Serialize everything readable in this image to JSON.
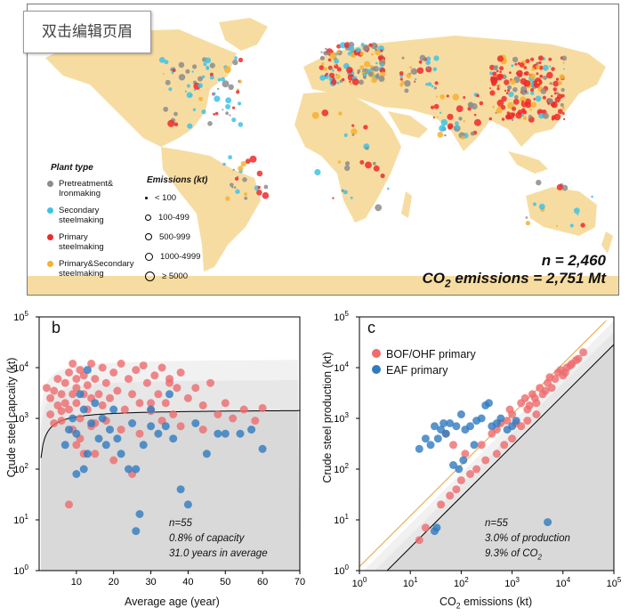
{
  "toolbar": {
    "edit_button_label": "双击编辑页眉"
  },
  "map": {
    "legend_plant_title": "Plant type",
    "plant_types": [
      {
        "label": "Pretreatment&\nIronmaking",
        "color": "#8c8c8c"
      },
      {
        "label": "Secondary\nsteelmaking",
        "color": "#3ec3e6"
      },
      {
        "label": "Primary\nsteelmaking",
        "color": "#ee2a2a"
      },
      {
        "label": "Primary&Secondary\nsteelmaking",
        "color": "#f6b133"
      }
    ],
    "legend_emissions_title": "Emissions (kt)",
    "emission_classes": [
      "< 100",
      "100-499",
      "500-999",
      "1000-4999",
      "≥ 5000"
    ],
    "n_label": "n = 2,460",
    "emissions_label_prefix": "CO",
    "emissions_label_sub": "2",
    "emissions_label_suffix": " emissions = 2,751 Mt",
    "colors": {
      "ocean": "#ffffff",
      "land": "#f7dca1"
    }
  },
  "chart_data": [
    {
      "panel": "b",
      "type": "scatter",
      "xlabel": "Average age (year)",
      "ylabel": "Crude steel capcaity (kt)",
      "xlim": [
        0,
        70
      ],
      "ylim": [
        1,
        100000
      ],
      "y_scale": "log",
      "x_ticks": [
        10,
        20,
        30,
        40,
        50,
        60,
        70
      ],
      "y_ticks": [
        "10^0",
        "10^1",
        "10^2",
        "10^3",
        "10^4",
        "10^5"
      ],
      "annotation": [
        "n=55",
        "0.8% of capacity",
        "31.0 years in average"
      ],
      "series": [
        {
          "color": "#ee6b6e",
          "points": [
            [
              2,
              4000
            ],
            [
              3,
              2500
            ],
            [
              4,
              3500
            ],
            [
              5,
              1800
            ],
            [
              5,
              6000
            ],
            [
              6,
              3000
            ],
            [
              6,
              900
            ],
            [
              7,
              5000
            ],
            [
              7,
              2000
            ],
            [
              8,
              8000
            ],
            [
              8,
              1500
            ],
            [
              9,
              3000
            ],
            [
              9,
              12000
            ],
            [
              10,
              2000
            ],
            [
              10,
              6000
            ],
            [
              10,
              4000
            ],
            [
              11,
              1000
            ],
            [
              11,
              9000
            ],
            [
              12,
              3000
            ],
            [
              12,
              7000
            ],
            [
              13,
              1500
            ],
            [
              13,
              4500
            ],
            [
              14,
              12000
            ],
            [
              14,
              2500
            ],
            [
              15,
              6000
            ],
            [
              15,
              800
            ],
            [
              16,
              3000
            ],
            [
              17,
              10000
            ],
            [
              17,
              1800
            ],
            [
              18,
              5000
            ],
            [
              19,
              2500
            ],
            [
              20,
              8000
            ],
            [
              21,
              3500
            ],
            [
              22,
              12000
            ],
            [
              23,
              1500
            ],
            [
              24,
              6000
            ],
            [
              25,
              3000
            ],
            [
              26,
              9000
            ],
            [
              27,
              2000
            ],
            [
              28,
              11000
            ],
            [
              29,
              5000
            ],
            [
              30,
              1400
            ],
            [
              31,
              7000
            ],
            [
              32,
              3000
            ],
            [
              33,
              10000
            ],
            [
              34,
              2000
            ],
            [
              35,
              6000
            ],
            [
              36,
              1200
            ],
            [
              37,
              4000
            ],
            [
              38,
              8000
            ],
            [
              40,
              2500
            ],
            [
              42,
              4000
            ],
            [
              44,
              1800
            ],
            [
              46,
              5000
            ],
            [
              48,
              1200
            ],
            [
              50,
              2000
            ],
            [
              52,
              1000
            ],
            [
              55,
              1500
            ],
            [
              58,
              900
            ],
            [
              60,
              1600
            ],
            [
              8,
              20
            ],
            [
              10,
              300
            ],
            [
              12,
              200
            ],
            [
              15,
              200
            ],
            [
              20,
              150
            ],
            [
              25,
              80
            ],
            [
              30,
              2000
            ],
            [
              35,
              5000
            ],
            [
              3,
              1200
            ],
            [
              4,
              800
            ],
            [
              6,
              1400
            ],
            [
              9,
              600
            ],
            [
              11,
              400
            ],
            [
              14,
              700
            ],
            [
              18,
              900
            ],
            [
              22,
              600
            ],
            [
              27,
              500
            ],
            [
              33,
              900
            ],
            [
              38,
              700
            ],
            [
              44,
              600
            ]
          ]
        },
        {
          "color": "#2f7bbf",
          "points": [
            [
              7,
              300
            ],
            [
              8,
              600
            ],
            [
              9,
              1000
            ],
            [
              10,
              500
            ],
            [
              11,
              3000
            ],
            [
              12,
              1500
            ],
            [
              13,
              200
            ],
            [
              14,
              800
            ],
            [
              15,
              2000
            ],
            [
              16,
              400
            ],
            [
              17,
              1000
            ],
            [
              18,
              300
            ],
            [
              19,
              600
            ],
            [
              20,
              1500
            ],
            [
              21,
              400
            ],
            [
              22,
              200
            ],
            [
              24,
              100
            ],
            [
              25,
              800
            ],
            [
              26,
              6
            ],
            [
              27,
              13
            ],
            [
              28,
              300
            ],
            [
              30,
              1500
            ],
            [
              32,
              500
            ],
            [
              34,
              700
            ],
            [
              36,
              400
            ],
            [
              38,
              40
            ],
            [
              40,
              20
            ],
            [
              42,
              800
            ],
            [
              45,
              200
            ],
            [
              48,
              500
            ],
            [
              50,
              500
            ],
            [
              54,
              500
            ],
            [
              57,
              600
            ],
            [
              60,
              250
            ],
            [
              12,
              100
            ],
            [
              10,
              80
            ],
            [
              26,
              100
            ],
            [
              30,
              700
            ],
            [
              35,
              3000
            ],
            [
              13,
              9000
            ]
          ]
        }
      ]
    },
    {
      "panel": "c",
      "type": "scatter",
      "xlabel_prefix": "CO",
      "xlabel_sub": "2",
      "xlabel_suffix": " emissions (kt)",
      "ylabel": "Crude steel production (kt)",
      "x_scale": "log",
      "y_scale": "log",
      "xlim": [
        1,
        100000
      ],
      "ylim": [
        1,
        100000
      ],
      "x_ticks": [
        "10^0",
        "10^1",
        "10^2",
        "10^3",
        "10^4",
        "10^5"
      ],
      "y_ticks": [
        "10^0",
        "10^1",
        "10^2",
        "10^3",
        "10^4",
        "10^5"
      ],
      "legend": [
        "BOF/OHF primary",
        "EAF primary"
      ],
      "annotation_lines": [
        "n=55",
        "3.0% of production",
        "9.3% of CO"
      ],
      "annotation_sub": "2",
      "series": [
        {
          "name": "BOF/OHF primary",
          "color": "#ee6b6e",
          "points": [
            [
              500,
              600
            ],
            [
              800,
              900
            ],
            [
              1000,
              1200
            ],
            [
              1200,
              800
            ],
            [
              1500,
              2000
            ],
            [
              2000,
              1500
            ],
            [
              2500,
              3000
            ],
            [
              3000,
              2000
            ],
            [
              3500,
              4000
            ],
            [
              4000,
              3000
            ],
            [
              5000,
              5000
            ],
            [
              6000,
              4000
            ],
            [
              7000,
              6000
            ],
            [
              8000,
              8000
            ],
            [
              10000,
              7000
            ],
            [
              12000,
              10000
            ],
            [
              15000,
              12000
            ],
            [
              20000,
              15000
            ],
            [
              25000,
              20000
            ],
            [
              3000,
              1200
            ],
            [
              2000,
              900
            ],
            [
              1500,
              700
            ],
            [
              1000,
              400
            ],
            [
              700,
              300
            ],
            [
              500,
              200
            ],
            [
              300,
              150
            ],
            [
              200,
              100
            ],
            [
              150,
              80
            ],
            [
              100,
              60
            ],
            [
              80,
              40
            ],
            [
              60,
              30
            ],
            [
              40,
              20
            ],
            [
              20,
              7
            ],
            [
              15,
              4
            ],
            [
              50,
              500
            ],
            [
              70,
              300
            ],
            [
              120,
              200
            ],
            [
              250,
              300
            ],
            [
              400,
              500
            ],
            [
              600,
              800
            ],
            [
              900,
              1500
            ],
            [
              1800,
              2500
            ],
            [
              2200,
              1800
            ],
            [
              2800,
              2500
            ],
            [
              4500,
              3500
            ],
            [
              5500,
              6500
            ],
            [
              9000,
              9000
            ],
            [
              11000,
              8000
            ],
            [
              14000,
              11000
            ],
            [
              18000,
              14000
            ]
          ]
        },
        {
          "name": "EAF primary",
          "color": "#2f7bbf",
          "points": [
            [
              15,
              250
            ],
            [
              20,
              400
            ],
            [
              30,
              700
            ],
            [
              40,
              600
            ],
            [
              50,
              500
            ],
            [
              60,
              800
            ],
            [
              80,
              700
            ],
            [
              100,
              1200
            ],
            [
              120,
              600
            ],
            [
              150,
              700
            ],
            [
              200,
              900
            ],
            [
              250,
              1000
            ],
            [
              300,
              1800
            ],
            [
              350,
              2000
            ],
            [
              400,
              700
            ],
            [
              500,
              800
            ],
            [
              600,
              1000
            ],
            [
              800,
              600
            ],
            [
              1000,
              700
            ],
            [
              1200,
              900
            ],
            [
              25,
              300
            ],
            [
              35,
              400
            ],
            [
              45,
              800
            ],
            [
              30,
              6
            ],
            [
              33,
              7
            ],
            [
              5000,
              9
            ],
            [
              70,
              120
            ],
            [
              90,
              100
            ],
            [
              110,
              150
            ],
            [
              180,
              300
            ]
          ]
        }
      ]
    }
  ]
}
